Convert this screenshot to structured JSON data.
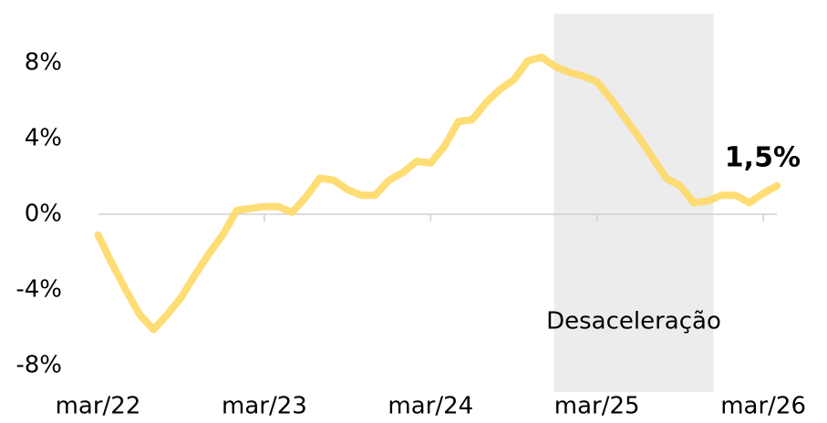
{
  "chart_data": {
    "type": "line",
    "categories": [
      "mar/22",
      null,
      null,
      null,
      null,
      null,
      null,
      null,
      null,
      null,
      null,
      null,
      "mar/23",
      null,
      null,
      null,
      null,
      null,
      null,
      null,
      null,
      null,
      null,
      null,
      "mar/24",
      null,
      null,
      null,
      null,
      null,
      null,
      null,
      null,
      null,
      null,
      null,
      "mar/25",
      null,
      null,
      null,
      null,
      null,
      null,
      null,
      null,
      null,
      null,
      null,
      "mar/26",
      null
    ],
    "series": [
      {
        "color": "#ffd966",
        "values": [
          -1.1,
          -2.6,
          -4.0,
          -5.3,
          -6.1,
          -5.3,
          -4.4,
          -3.2,
          -2.1,
          -1.1,
          0.2,
          0.3,
          0.4,
          0.4,
          0.1,
          0.9,
          1.9,
          1.8,
          1.3,
          1.0,
          1.0,
          1.8,
          2.2,
          2.8,
          2.7,
          3.6,
          4.9,
          5.0,
          5.9,
          6.6,
          7.1,
          8.1,
          8.3,
          7.8,
          7.5,
          7.3,
          7.0,
          6.1,
          5.1,
          4.1,
          3.0,
          1.9,
          1.5,
          0.6,
          0.7,
          1.0,
          1.0,
          0.6,
          1.1,
          1.5
        ]
      }
    ],
    "ylim": [
      -9.4,
      10.6
    ],
    "yticks": [
      {
        "value": -8,
        "label": "-8%"
      },
      {
        "value": -4,
        "label": "-4%"
      },
      {
        "value": 0,
        "label": "0%"
      },
      {
        "value": 4,
        "label": "4%"
      },
      {
        "value": 8,
        "label": "8%"
      }
    ],
    "shade": {
      "label": "Desaceleração",
      "start": 32.9,
      "end": 44.4
    },
    "end_label": "1,5%"
  }
}
